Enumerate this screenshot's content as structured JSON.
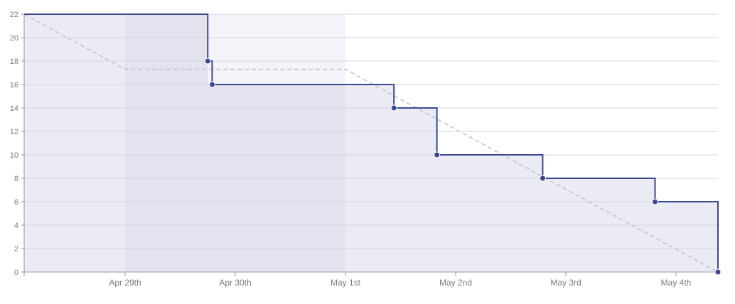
{
  "chart_data": {
    "type": "line",
    "title": "",
    "xlabel": "",
    "ylabel": "",
    "ylim": [
      0,
      22
    ],
    "yticks": [
      0,
      2,
      4,
      6,
      8,
      10,
      12,
      14,
      16,
      18,
      20,
      22
    ],
    "xlim_days": [
      -0.9,
      5.35
    ],
    "xticks": [
      {
        "day": 0,
        "label": "Apr 29th"
      },
      {
        "day": 1,
        "label": "Apr 30th"
      },
      {
        "day": 2,
        "label": "May 1st"
      },
      {
        "day": 3,
        "label": "May 2nd"
      },
      {
        "day": 4,
        "label": "May 3rd"
      },
      {
        "day": 5,
        "label": "May 4th"
      }
    ],
    "grid": true,
    "legend": "none",
    "shaded_ranges": [
      {
        "from_day": -0.9,
        "to_day": 0.0,
        "shade": "light"
      },
      {
        "from_day": 0.0,
        "to_day": 2.0,
        "shade": "dark"
      },
      {
        "from_day": 1.79,
        "to_day": 2.0,
        "shade": "pale"
      },
      {
        "from_day": 2.0,
        "to_day": 5.35,
        "shade": "light"
      }
    ],
    "series": [
      {
        "role": "actual",
        "step": true,
        "color": "#3b4a8f",
        "points": [
          {
            "x": -0.9,
            "y": 22,
            "marker": false
          },
          {
            "x": 0.75,
            "y": 18,
            "marker": true
          },
          {
            "x": 0.79,
            "y": 16,
            "marker": true
          },
          {
            "x": 2.44,
            "y": 14,
            "marker": true
          },
          {
            "x": 2.83,
            "y": 10,
            "marker": true
          },
          {
            "x": 3.79,
            "y": 8,
            "marker": true
          },
          {
            "x": 4.81,
            "y": 6,
            "marker": true
          },
          {
            "x": 5.35,
            "y": 0,
            "marker": true
          }
        ]
      },
      {
        "role": "guideline",
        "dashed": true,
        "color": "#c4c4cc",
        "points": [
          {
            "x": -0.9,
            "y": 22
          },
          {
            "x": 0.0,
            "y": 17.3
          },
          {
            "x": 2.0,
            "y": 17.3
          },
          {
            "x": 5.35,
            "y": 0
          }
        ]
      }
    ],
    "colors": {
      "background_light": "#ebebf4",
      "background_dark": "#e3e3ef",
      "background_pale": "#f3f3f9",
      "grid": "#d4d4dc",
      "axis": "#9a9aa6",
      "tick_label": "#7a7a85"
    }
  }
}
